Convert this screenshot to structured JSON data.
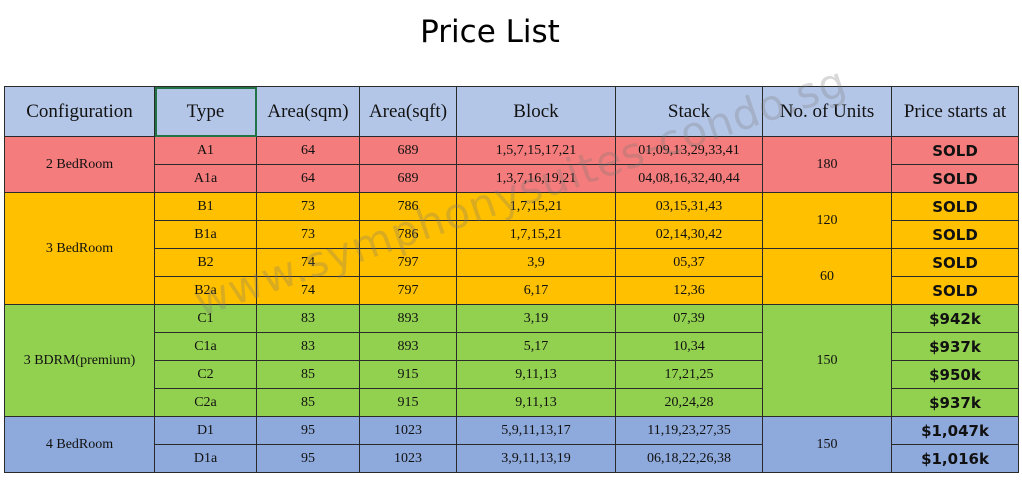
{
  "title": "Price List",
  "watermark": "www.symphonysuites-condo.sg",
  "headers": [
    "Configuration",
    "Type",
    "Area(sqm)",
    "Area(sqft)",
    "Block",
    "Stack",
    "No. of Units",
    "Price starts at"
  ],
  "groups": [
    {
      "name": "2 BedRoom",
      "color": "#f47c7c",
      "rows": [
        {
          "type": "A1",
          "sqm": "64",
          "sqft": "689",
          "block": "1,5,7,15,17,21",
          "stack": "01,09,13,29,33,41",
          "price": "SOLD"
        },
        {
          "type": "A1a",
          "sqm": "64",
          "sqft": "689",
          "block": "1,3,7,16,19,21",
          "stack": "04,08,16,32,40,44",
          "price": "SOLD"
        }
      ],
      "units": [
        "180"
      ]
    },
    {
      "name": "3 BedRoom",
      "color": "#ffc000",
      "rows": [
        {
          "type": "B1",
          "sqm": "73",
          "sqft": "786",
          "block": "1,7,15,21",
          "stack": "03,15,31,43",
          "price": "SOLD"
        },
        {
          "type": "B1a",
          "sqm": "73",
          "sqft": "786",
          "block": "1,7,15,21",
          "stack": "02,14,30,42",
          "price": "SOLD"
        },
        {
          "type": "B2",
          "sqm": "74",
          "sqft": "797",
          "block": "3,9",
          "stack": "05,37",
          "price": "SOLD"
        },
        {
          "type": "B2a",
          "sqm": "74",
          "sqft": "797",
          "block": "6,17",
          "stack": "12,36",
          "price": "SOLD"
        }
      ],
      "units": [
        "120",
        "60"
      ]
    },
    {
      "name": "3 BDRM(premium)",
      "color": "#92d050",
      "rows": [
        {
          "type": "C1",
          "sqm": "83",
          "sqft": "893",
          "block": "3,19",
          "stack": "07,39",
          "price": "$942k"
        },
        {
          "type": "C1a",
          "sqm": "83",
          "sqft": "893",
          "block": "5,17",
          "stack": "10,34",
          "price": "$937k"
        },
        {
          "type": "C2",
          "sqm": "85",
          "sqft": "915",
          "block": "9,11,13",
          "stack": "17,21,25",
          "price": "$950k"
        },
        {
          "type": "C2a",
          "sqm": "85",
          "sqft": "915",
          "block": "9,11,13",
          "stack": "20,24,28",
          "price": "$937k"
        }
      ],
      "units": [
        "150"
      ]
    },
    {
      "name": "4 BedRoom",
      "color": "#8ea9db",
      "rows": [
        {
          "type": "D1",
          "sqm": "95",
          "sqft": "1023",
          "block": "5,9,11,13,17",
          "stack": "11,19,23,27,35",
          "price": "$1,047k"
        },
        {
          "type": "D1a",
          "sqm": "95",
          "sqft": "1023",
          "block": "3,9,11,13,19",
          "stack": "06,18,22,26,38",
          "price": "$1,016k"
        }
      ],
      "units": [
        "150"
      ]
    }
  ]
}
